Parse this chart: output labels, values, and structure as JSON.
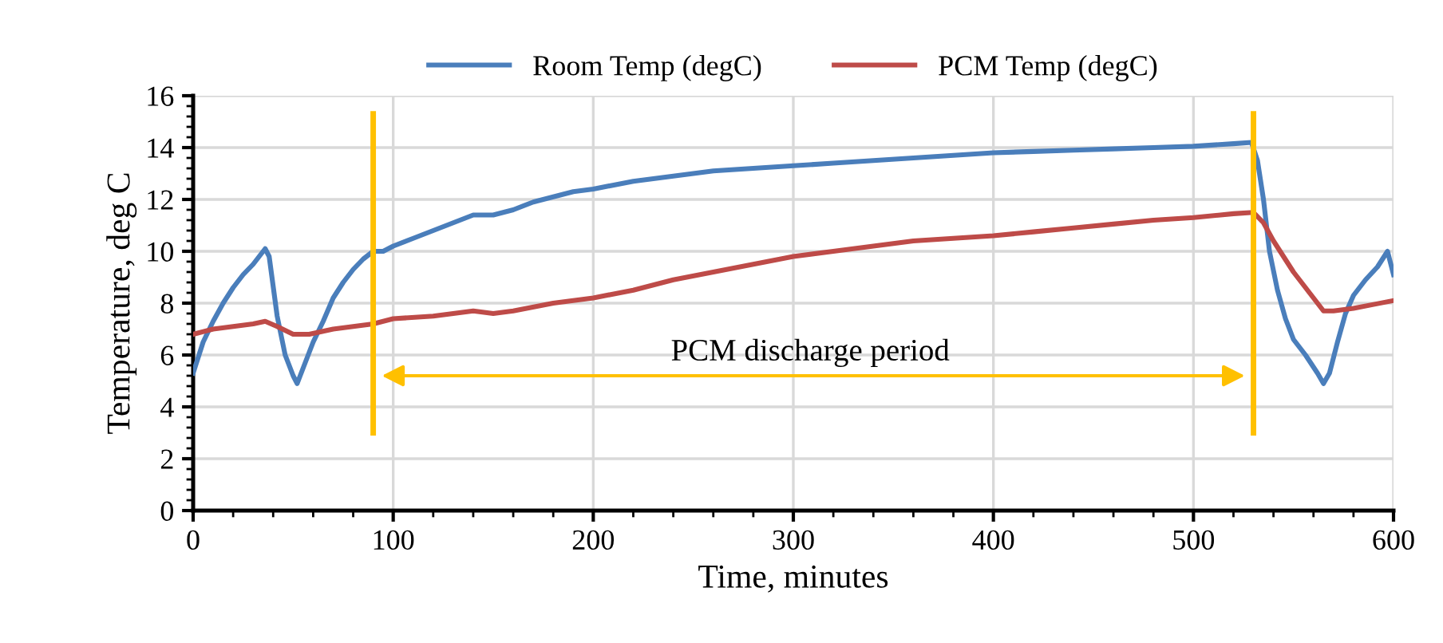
{
  "chart_data": {
    "type": "line",
    "xlabel": "Time, minutes",
    "ylabel": "Temperature, deg C",
    "xlim": [
      0,
      600
    ],
    "xticks": [
      0,
      100,
      200,
      300,
      400,
      500,
      600
    ],
    "ylim": [
      0,
      16
    ],
    "yticks": [
      0,
      2,
      4,
      6,
      8,
      10,
      12,
      14,
      16
    ],
    "grid": true,
    "legend": "top",
    "marker": "none",
    "line_style": "solid",
    "series": [
      {
        "name": "Room Temp (degC)",
        "color": "#4a7ebb",
        "x": [
          0,
          5,
          10,
          15,
          20,
          25,
          30,
          36,
          38,
          42,
          46,
          50,
          52,
          55,
          60,
          65,
          70,
          75,
          80,
          85,
          90,
          95,
          100,
          110,
          120,
          130,
          140,
          150,
          160,
          170,
          180,
          190,
          200,
          220,
          240,
          260,
          280,
          300,
          320,
          340,
          360,
          380,
          400,
          420,
          440,
          460,
          480,
          500,
          520,
          529,
          532,
          535,
          538,
          542,
          546,
          550,
          556,
          562,
          565,
          568,
          572,
          576,
          580,
          586,
          592,
          597,
          600
        ],
        "values": [
          5.3,
          6.5,
          7.3,
          8.0,
          8.6,
          9.1,
          9.5,
          10.1,
          9.8,
          7.5,
          6.0,
          5.2,
          4.9,
          5.5,
          6.5,
          7.3,
          8.2,
          8.8,
          9.3,
          9.7,
          10.0,
          10.0,
          10.2,
          10.5,
          10.8,
          11.1,
          11.4,
          11.4,
          11.6,
          11.9,
          12.1,
          12.3,
          12.4,
          12.7,
          12.9,
          13.1,
          13.2,
          13.3,
          13.4,
          13.5,
          13.6,
          13.7,
          13.8,
          13.85,
          13.9,
          13.95,
          14.0,
          14.05,
          14.15,
          14.2,
          13.5,
          12.0,
          10.0,
          8.5,
          7.4,
          6.6,
          6.0,
          5.3,
          4.9,
          5.3,
          6.5,
          7.6,
          8.3,
          8.9,
          9.4,
          10.0,
          9.1
        ]
      },
      {
        "name": "PCM Temp (degC)",
        "color": "#be4b48",
        "x": [
          0,
          10,
          20,
          30,
          36,
          42,
          50,
          58,
          70,
          80,
          90,
          100,
          120,
          140,
          150,
          160,
          180,
          200,
          220,
          240,
          260,
          280,
          300,
          320,
          340,
          360,
          380,
          400,
          420,
          440,
          460,
          480,
          500,
          520,
          530,
          535,
          540,
          545,
          550,
          555,
          560,
          565,
          570,
          580,
          590,
          600
        ],
        "values": [
          6.8,
          7.0,
          7.1,
          7.2,
          7.3,
          7.1,
          6.8,
          6.8,
          7.0,
          7.1,
          7.2,
          7.4,
          7.5,
          7.7,
          7.6,
          7.7,
          8.0,
          8.2,
          8.5,
          8.9,
          9.2,
          9.5,
          9.8,
          10.0,
          10.2,
          10.4,
          10.5,
          10.6,
          10.75,
          10.9,
          11.05,
          11.2,
          11.3,
          11.45,
          11.5,
          11.1,
          10.4,
          9.8,
          9.2,
          8.7,
          8.2,
          7.7,
          7.7,
          7.8,
          7.95,
          8.1
        ]
      }
    ],
    "ref_lines": [
      {
        "axis": "x",
        "value": 90,
        "color": "#ffc000"
      },
      {
        "axis": "x",
        "value": 530,
        "color": "#ffc000"
      }
    ],
    "annotations": [
      "PCM discharge period"
    ]
  }
}
